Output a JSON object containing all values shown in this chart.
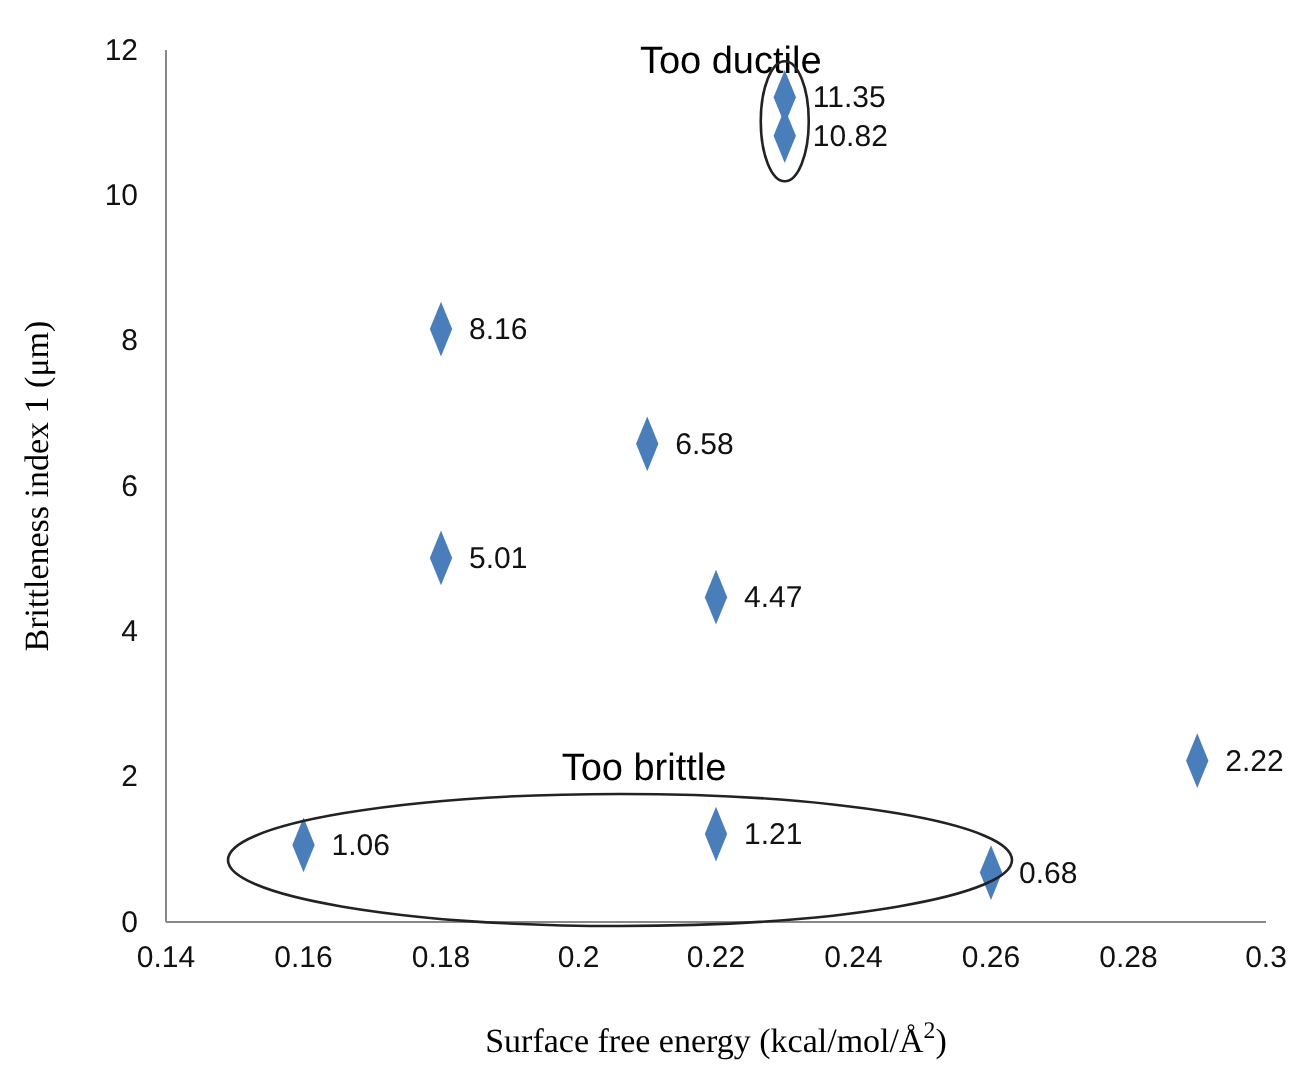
{
  "chart_data": {
    "type": "scatter",
    "xlabel": "Surface free energy (kcal/mol/Å$^{2}$)",
    "ylabel": "Brittleness index 1 (μm)",
    "x": [
      0.23,
      0.23,
      0.18,
      0.21,
      0.18,
      0.22,
      0.29,
      0.16,
      0.22,
      0.26
    ],
    "values": [
      11.35,
      10.82,
      8.16,
      6.58,
      5.01,
      4.47,
      2.22,
      1.06,
      1.21,
      0.68
    ],
    "color": "#4a7ebb",
    "marker": "diamond",
    "data_labels": true,
    "xlim": [
      0.14,
      0.3
    ],
    "xticks": [
      0.14,
      0.16,
      0.18,
      0.2,
      0.22,
      0.24,
      0.26,
      0.28,
      0.3
    ],
    "ylim": [
      0,
      12
    ],
    "yticks": [
      0,
      2,
      4,
      6,
      8,
      10,
      12
    ],
    "annotations": [
      {
        "text": "Too ductile",
        "x": 0.23,
        "y": 11.35
      },
      "Too brittle"
    ]
  }
}
